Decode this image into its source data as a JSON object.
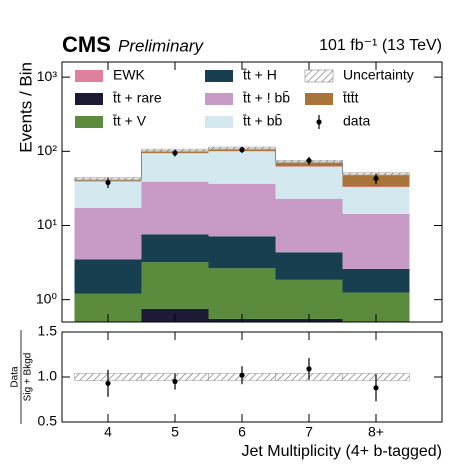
{
  "chart_data": [
    {
      "type": "bar",
      "experiment": "CMS",
      "status": "Preliminary",
      "lumi": "101 fb⁻¹ (13 TeV)",
      "ylabel": "Events / Bin",
      "categories": [
        "4",
        "5",
        "6",
        "7",
        "8+"
      ],
      "log_scale": true,
      "stacked": true,
      "ylim": [
        0.5,
        1600
      ],
      "yticks": [
        {
          "value": 1,
          "label": "10⁰"
        },
        {
          "value": 10,
          "label": "10¹"
        },
        {
          "value": 100,
          "label": "10²"
        },
        {
          "value": 1000,
          "label": "10³"
        }
      ],
      "series": [
        {
          "name": "t̄t + rare",
          "color": "#1c1a35",
          "values": [
            0.4,
            0.75,
            0.55,
            0.55,
            0.4
          ]
        },
        {
          "name": "t̄t + V",
          "color": "#5b8c3e",
          "values": [
            0.8,
            2.45,
            2.1,
            1.3,
            0.85
          ]
        },
        {
          "name": "t̄t + H",
          "color": "#173f4f",
          "values": [
            2.3,
            4.4,
            4.5,
            2.5,
            1.35
          ]
        },
        {
          "name": "t̄t + ! bb̄",
          "color": "#c79bc5",
          "values": [
            13.8,
            31.4,
            29.4,
            18.6,
            11.7
          ]
        },
        {
          "name": "t̄t + bb̄",
          "color": "#d4e9ef",
          "values": [
            21.7,
            55,
            63.4,
            39,
            18.7
          ]
        },
        {
          "name": "EWK",
          "color": "#e0809c",
          "values": [
            0.5,
            1,
            1,
            0.8,
            0.5
          ]
        },
        {
          "name": "t̄tt̄t",
          "color": "#a8743a",
          "values": [
            3,
            8,
            9,
            10,
            16
          ]
        }
      ],
      "uncertainty": {
        "name": "Uncertainty",
        "values": [
          0.04,
          0.04,
          0.04,
          0.04,
          0.04
        ]
      },
      "data": {
        "name": "data",
        "values": [
          38,
          95,
          105,
          75,
          43
        ],
        "errors": [
          6,
          10,
          10,
          9,
          7
        ]
      }
    },
    {
      "type": "scatter",
      "ylabel": [
        "Data",
        "Sig + Bkgd"
      ],
      "xlabel": "Jet Multiplicity (4+ b-tagged)",
      "categories": [
        "4",
        "5",
        "6",
        "7",
        "8+"
      ],
      "ylim": [
        0.5,
        1.5
      ],
      "yticks": [
        0.5,
        {
          "value": 1,
          "label": "1.0"
        },
        1.5
      ],
      "values": [
        0.93,
        0.95,
        1.02,
        1.09,
        0.88
      ],
      "errors": [
        0.15,
        0.09,
        0.1,
        0.12,
        0.15
      ]
    }
  ]
}
